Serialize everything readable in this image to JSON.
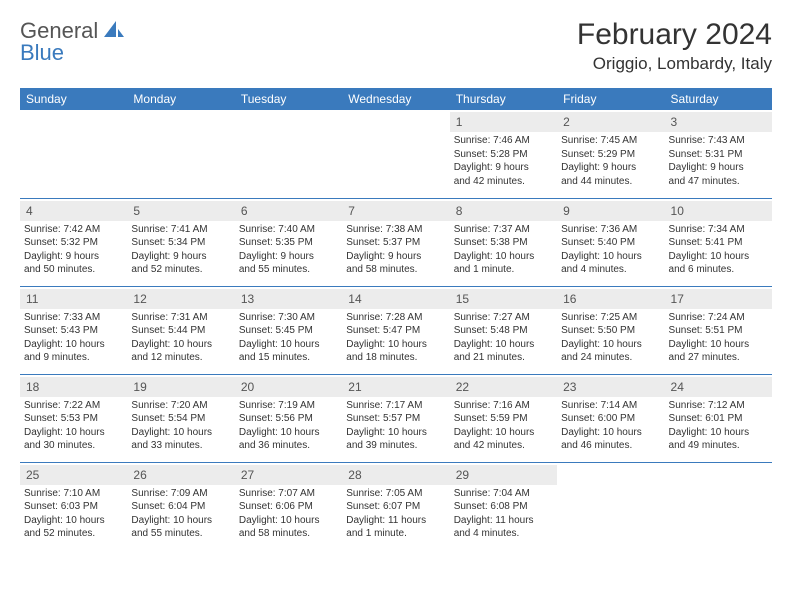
{
  "logo": {
    "general": "General",
    "blue": "Blue"
  },
  "title": "February 2024",
  "location": "Origgio, Lombardy, Italy",
  "daysOfWeek": [
    "Sunday",
    "Monday",
    "Tuesday",
    "Wednesday",
    "Thursday",
    "Friday",
    "Saturday"
  ],
  "colors": {
    "headerBg": "#3a7abd",
    "dayNumBg": "#ececec",
    "text": "#333333"
  },
  "weeks": [
    [
      null,
      null,
      null,
      null,
      {
        "n": "1",
        "sr": "Sunrise: 7:46 AM",
        "ss": "Sunset: 5:28 PM",
        "dl1": "Daylight: 9 hours",
        "dl2": "and 42 minutes."
      },
      {
        "n": "2",
        "sr": "Sunrise: 7:45 AM",
        "ss": "Sunset: 5:29 PM",
        "dl1": "Daylight: 9 hours",
        "dl2": "and 44 minutes."
      },
      {
        "n": "3",
        "sr": "Sunrise: 7:43 AM",
        "ss": "Sunset: 5:31 PM",
        "dl1": "Daylight: 9 hours",
        "dl2": "and 47 minutes."
      }
    ],
    [
      {
        "n": "4",
        "sr": "Sunrise: 7:42 AM",
        "ss": "Sunset: 5:32 PM",
        "dl1": "Daylight: 9 hours",
        "dl2": "and 50 minutes."
      },
      {
        "n": "5",
        "sr": "Sunrise: 7:41 AM",
        "ss": "Sunset: 5:34 PM",
        "dl1": "Daylight: 9 hours",
        "dl2": "and 52 minutes."
      },
      {
        "n": "6",
        "sr": "Sunrise: 7:40 AM",
        "ss": "Sunset: 5:35 PM",
        "dl1": "Daylight: 9 hours",
        "dl2": "and 55 minutes."
      },
      {
        "n": "7",
        "sr": "Sunrise: 7:38 AM",
        "ss": "Sunset: 5:37 PM",
        "dl1": "Daylight: 9 hours",
        "dl2": "and 58 minutes."
      },
      {
        "n": "8",
        "sr": "Sunrise: 7:37 AM",
        "ss": "Sunset: 5:38 PM",
        "dl1": "Daylight: 10 hours",
        "dl2": "and 1 minute."
      },
      {
        "n": "9",
        "sr": "Sunrise: 7:36 AM",
        "ss": "Sunset: 5:40 PM",
        "dl1": "Daylight: 10 hours",
        "dl2": "and 4 minutes."
      },
      {
        "n": "10",
        "sr": "Sunrise: 7:34 AM",
        "ss": "Sunset: 5:41 PM",
        "dl1": "Daylight: 10 hours",
        "dl2": "and 6 minutes."
      }
    ],
    [
      {
        "n": "11",
        "sr": "Sunrise: 7:33 AM",
        "ss": "Sunset: 5:43 PM",
        "dl1": "Daylight: 10 hours",
        "dl2": "and 9 minutes."
      },
      {
        "n": "12",
        "sr": "Sunrise: 7:31 AM",
        "ss": "Sunset: 5:44 PM",
        "dl1": "Daylight: 10 hours",
        "dl2": "and 12 minutes."
      },
      {
        "n": "13",
        "sr": "Sunrise: 7:30 AM",
        "ss": "Sunset: 5:45 PM",
        "dl1": "Daylight: 10 hours",
        "dl2": "and 15 minutes."
      },
      {
        "n": "14",
        "sr": "Sunrise: 7:28 AM",
        "ss": "Sunset: 5:47 PM",
        "dl1": "Daylight: 10 hours",
        "dl2": "and 18 minutes."
      },
      {
        "n": "15",
        "sr": "Sunrise: 7:27 AM",
        "ss": "Sunset: 5:48 PM",
        "dl1": "Daylight: 10 hours",
        "dl2": "and 21 minutes."
      },
      {
        "n": "16",
        "sr": "Sunrise: 7:25 AM",
        "ss": "Sunset: 5:50 PM",
        "dl1": "Daylight: 10 hours",
        "dl2": "and 24 minutes."
      },
      {
        "n": "17",
        "sr": "Sunrise: 7:24 AM",
        "ss": "Sunset: 5:51 PM",
        "dl1": "Daylight: 10 hours",
        "dl2": "and 27 minutes."
      }
    ],
    [
      {
        "n": "18",
        "sr": "Sunrise: 7:22 AM",
        "ss": "Sunset: 5:53 PM",
        "dl1": "Daylight: 10 hours",
        "dl2": "and 30 minutes."
      },
      {
        "n": "19",
        "sr": "Sunrise: 7:20 AM",
        "ss": "Sunset: 5:54 PM",
        "dl1": "Daylight: 10 hours",
        "dl2": "and 33 minutes."
      },
      {
        "n": "20",
        "sr": "Sunrise: 7:19 AM",
        "ss": "Sunset: 5:56 PM",
        "dl1": "Daylight: 10 hours",
        "dl2": "and 36 minutes."
      },
      {
        "n": "21",
        "sr": "Sunrise: 7:17 AM",
        "ss": "Sunset: 5:57 PM",
        "dl1": "Daylight: 10 hours",
        "dl2": "and 39 minutes."
      },
      {
        "n": "22",
        "sr": "Sunrise: 7:16 AM",
        "ss": "Sunset: 5:59 PM",
        "dl1": "Daylight: 10 hours",
        "dl2": "and 42 minutes."
      },
      {
        "n": "23",
        "sr": "Sunrise: 7:14 AM",
        "ss": "Sunset: 6:00 PM",
        "dl1": "Daylight: 10 hours",
        "dl2": "and 46 minutes."
      },
      {
        "n": "24",
        "sr": "Sunrise: 7:12 AM",
        "ss": "Sunset: 6:01 PM",
        "dl1": "Daylight: 10 hours",
        "dl2": "and 49 minutes."
      }
    ],
    [
      {
        "n": "25",
        "sr": "Sunrise: 7:10 AM",
        "ss": "Sunset: 6:03 PM",
        "dl1": "Daylight: 10 hours",
        "dl2": "and 52 minutes."
      },
      {
        "n": "26",
        "sr": "Sunrise: 7:09 AM",
        "ss": "Sunset: 6:04 PM",
        "dl1": "Daylight: 10 hours",
        "dl2": "and 55 minutes."
      },
      {
        "n": "27",
        "sr": "Sunrise: 7:07 AM",
        "ss": "Sunset: 6:06 PM",
        "dl1": "Daylight: 10 hours",
        "dl2": "and 58 minutes."
      },
      {
        "n": "28",
        "sr": "Sunrise: 7:05 AM",
        "ss": "Sunset: 6:07 PM",
        "dl1": "Daylight: 11 hours",
        "dl2": "and 1 minute."
      },
      {
        "n": "29",
        "sr": "Sunrise: 7:04 AM",
        "ss": "Sunset: 6:08 PM",
        "dl1": "Daylight: 11 hours",
        "dl2": "and 4 minutes."
      },
      null,
      null
    ]
  ]
}
